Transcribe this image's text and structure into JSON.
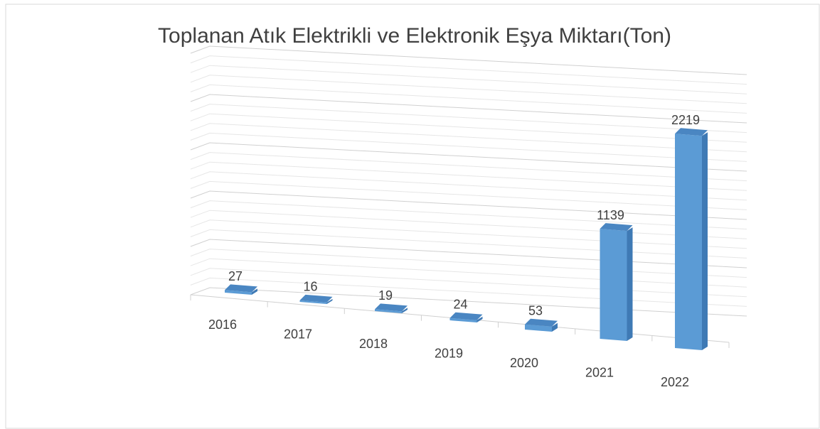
{
  "chart_data": {
    "type": "bar3d",
    "title": "Toplanan Atık Elektrikli ve Elektronik Eşya Miktarı(Ton)",
    "categories": [
      "2016",
      "2017",
      "2018",
      "2019",
      "2020",
      "2021",
      "2022"
    ],
    "values": [
      27,
      16,
      19,
      24,
      53,
      1139,
      2219
    ],
    "color": "#5b9bd5",
    "ylim": [
      0,
      2500
    ],
    "grid": true
  }
}
